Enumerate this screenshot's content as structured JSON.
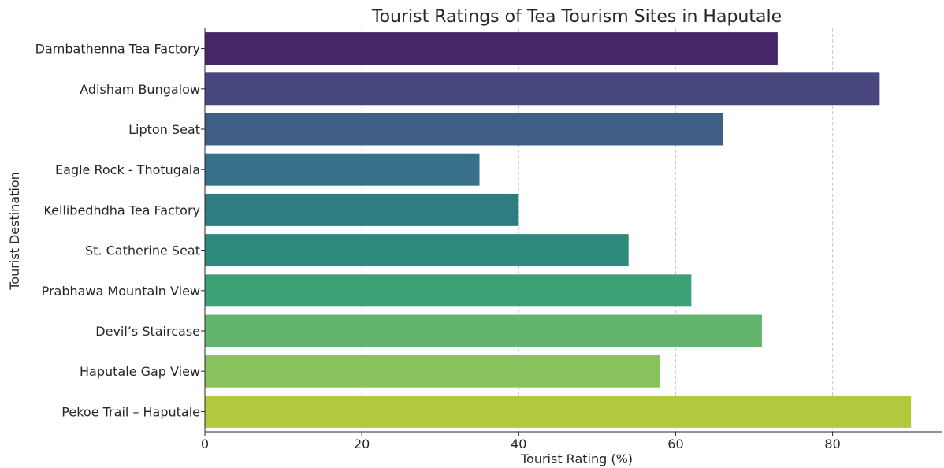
{
  "chart_data": {
    "type": "bar",
    "orientation": "horizontal",
    "title": "Tourist Ratings of Tea Tourism Sites in Haputale",
    "xlabel": "Tourist Rating (%)",
    "ylabel": "Tourist Destination",
    "xlim": [
      0,
      94
    ],
    "xticks": [
      0,
      20,
      40,
      60,
      80
    ],
    "grid": "x-dashed",
    "categories": [
      "Dambathenna Tea Factory",
      "Adisham Bungalow",
      "Lipton Seat",
      "Eagle Rock - Thotugala",
      "Kellibedhdha Tea Factory",
      "St. Catherine Seat",
      "Prabhawa Mountain View",
      "Devil’s Staircase",
      "Haputale Gap View",
      "Pekoe Trail – Haputale"
    ],
    "values": [
      73,
      86,
      66,
      35,
      40,
      54,
      62,
      71,
      58,
      90
    ],
    "colors": [
      "#482567",
      "#48467f",
      "#3f5f86",
      "#36708a",
      "#2e7d80",
      "#2e8a7d",
      "#3da176",
      "#63b56d",
      "#88c35e",
      "#b3c93d"
    ]
  }
}
